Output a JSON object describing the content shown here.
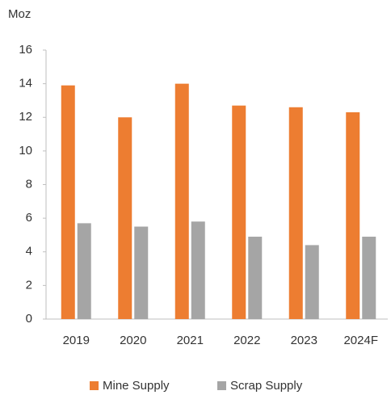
{
  "chart_data": {
    "type": "bar",
    "y_axis_label": "Moz",
    "categories": [
      "2019",
      "2020",
      "2021",
      "2022",
      "2023",
      "2024F"
    ],
    "series": [
      {
        "name": "Mine Supply",
        "color": "#ED7D31",
        "values": [
          13.9,
          12.0,
          14.0,
          12.7,
          12.6,
          12.3
        ]
      },
      {
        "name": "Scrap Supply",
        "color": "#A5A5A5",
        "values": [
          5.7,
          5.5,
          5.8,
          4.9,
          4.4,
          4.9
        ]
      }
    ],
    "ylim": [
      0,
      16
    ],
    "yticks": [
      0,
      2,
      4,
      6,
      8,
      10,
      12,
      14,
      16
    ],
    "grid": false,
    "legend": "bottom"
  }
}
